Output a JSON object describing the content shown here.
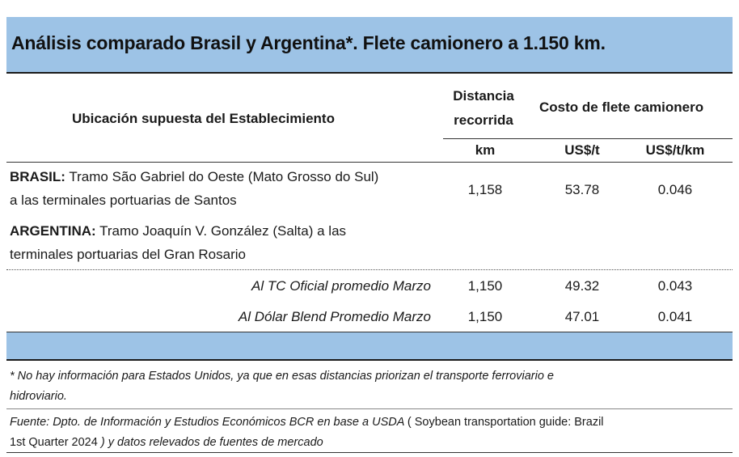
{
  "title": "Análisis comparado Brasil y Argentina*. Flete camionero a 1.150 km.",
  "header": {
    "location": "Ubicación supuesta del Establecimiento",
    "distance_line1": "Distancia",
    "distance_line2": "recorrida",
    "cost": "Costo de flete camionero",
    "unit_km": "km",
    "unit_usd_t": "US$/t",
    "unit_usd_t_km": "US$/t/km"
  },
  "rows": {
    "brasil": {
      "label": "BRASIL:",
      "text_line1": " Tramo São Gabriel do Oeste (Mato Grosso do Sul)",
      "text_line2": "a las terminales portuarias de Santos",
      "km": "1,158",
      "usd_t": "53.78",
      "usd_t_km": "0.046"
    },
    "argentina": {
      "label": "ARGENTINA:",
      "text_line1": " Tramo Joaquín V. González (Salta) a las",
      "text_line2": "terminales portuarias del Gran Rosario"
    },
    "tc_oficial": {
      "label": "Al TC Oficial promedio Marzo",
      "km": "1,150",
      "usd_t": "49.32",
      "usd_t_km": "0.043"
    },
    "dolar_blend": {
      "label": "Al Dólar Blend Promedio Marzo",
      "km": "1,150",
      "usd_t": "47.01",
      "usd_t_km": "0.041"
    }
  },
  "footnotes": {
    "note1_line1": "* No hay información para Estados Unidos, ya que en esas distancias priorizan el transporte ferroviario e",
    "note1_line2": "hidroviario.",
    "source_line1_a": "Fuente: Dpto. de Información y Estudios Económicos BCR en base a USDA ",
    "source_line1_b": "( Soybean transportation guide: Brazil",
    "source_line2_a": "1st Quarter 2024 ",
    "source_line2_b": ") y datos relevados de fuentes de mercado"
  },
  "colors": {
    "band": "#9dc3e6",
    "text": "#1a1a1a"
  }
}
